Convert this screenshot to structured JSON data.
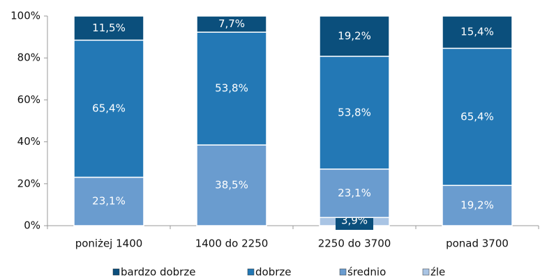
{
  "chart_data": {
    "type": "stacked_bar",
    "categories": [
      "poniżej 1400",
      "1400 do 2250",
      "2250  do 3700",
      "ponad 3700"
    ],
    "series": [
      {
        "name": "bardzo dobrze",
        "color": "#0b4f7c",
        "values": [
          11.5,
          7.7,
          19.2,
          15.4
        ],
        "value_labels": [
          "11,5%",
          "7,7%",
          "19,2%",
          "15,4%"
        ]
      },
      {
        "name": "dobrze",
        "color": "#2378b5",
        "values": [
          65.4,
          53.8,
          53.8,
          65.4
        ],
        "value_labels": [
          "65,4%",
          "53,8%",
          "53,8%",
          "65,4%"
        ]
      },
      {
        "name": "średnio",
        "color": "#6a9ccf",
        "values": [
          23.1,
          38.5,
          23.1,
          19.2
        ],
        "value_labels": [
          "23,1%",
          "38,5%",
          "23,1%",
          "19,2%"
        ]
      },
      {
        "name": "źle",
        "color": "#a9c4e4",
        "values": [
          null,
          null,
          3.9,
          null
        ],
        "value_labels": [
          null,
          null,
          "3,9%",
          null
        ]
      }
    ],
    "ylim": [
      0,
      100
    ],
    "yticks": [
      {
        "value": 0,
        "label": "0%"
      },
      {
        "value": 20,
        "label": "20%"
      },
      {
        "value": 40,
        "label": "40%"
      },
      {
        "value": 60,
        "label": "60%"
      },
      {
        "value": 80,
        "label": "80%"
      },
      {
        "value": 100,
        "label": "100%"
      }
    ],
    "legend": "bottom"
  }
}
